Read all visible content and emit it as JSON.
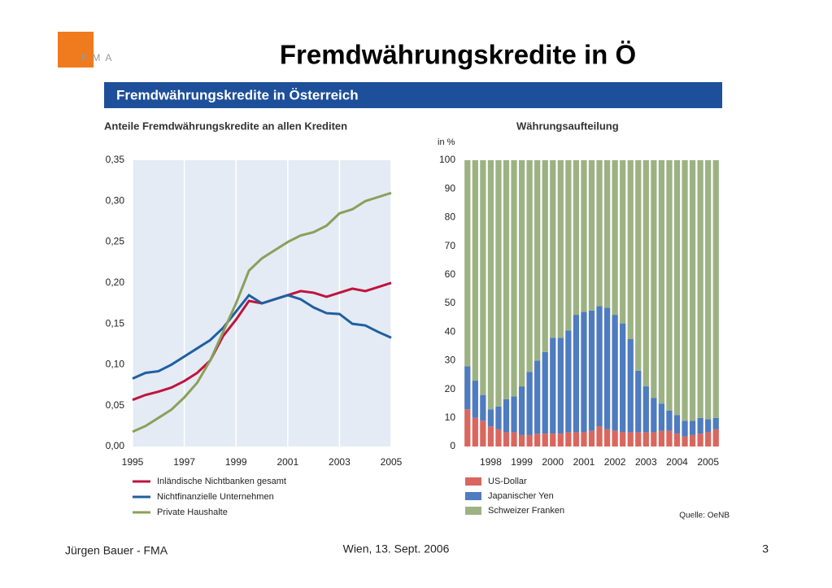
{
  "slide": {
    "title": "Fremdwährungskredite in Ö",
    "logo": "FMA",
    "banner": "Fremdwährungskredite in Österreich",
    "source": "Quelle: OeNB",
    "footer_left": "Jürgen Bauer - FMA",
    "footer_center": "Wien, 13. Sept. 2006",
    "page": "3"
  },
  "chart_data": [
    {
      "type": "line",
      "title": "Anteile Fremdwährungskredite an allen Krediten",
      "x": [
        1995,
        1995.5,
        1996,
        1996.5,
        1997,
        1997.5,
        1998,
        1998.5,
        1999,
        1999.5,
        2000,
        2000.5,
        2001,
        2001.5,
        2002,
        2002.5,
        2003,
        2003.5,
        2004,
        2004.5,
        2005
      ],
      "xlim": [
        1995,
        2005
      ],
      "xticks": [
        1995,
        1997,
        1999,
        2001,
        2003,
        2005
      ],
      "ylim": [
        0,
        0.35
      ],
      "yticks": [
        {
          "value": 0,
          "label": "0,00"
        },
        {
          "value": 0.05,
          "label": "0,05"
        },
        {
          "value": 0.1,
          "label": "0,10"
        },
        {
          "value": 0.15,
          "label": "0,15"
        },
        {
          "value": 0.2,
          "label": "0,20"
        },
        {
          "value": 0.25,
          "label": "0,25"
        },
        {
          "value": 0.3,
          "label": "0,30"
        },
        {
          "value": 0.35,
          "label": "0,35"
        }
      ],
      "grid": true,
      "series": [
        {
          "name": "Inländische Nichtbanken gesamt",
          "color": "#c0143c",
          "values": [
            0.057,
            0.063,
            0.067,
            0.072,
            0.08,
            0.09,
            0.105,
            0.135,
            0.155,
            0.178,
            0.175,
            0.18,
            0.185,
            0.19,
            0.188,
            0.183,
            0.188,
            0.193,
            0.19,
            0.195,
            0.2
          ]
        },
        {
          "name": "Nichtfinanzielle Unternehmen",
          "color": "#1f5fa0",
          "values": [
            0.083,
            0.09,
            0.092,
            0.1,
            0.11,
            0.12,
            0.13,
            0.145,
            0.165,
            0.185,
            0.175,
            0.18,
            0.185,
            0.18,
            0.17,
            0.163,
            0.162,
            0.15,
            0.148,
            0.14,
            0.133
          ]
        },
        {
          "name": "Private Haushalte",
          "color": "#8aa05a",
          "values": [
            0.018,
            0.025,
            0.035,
            0.045,
            0.06,
            0.078,
            0.105,
            0.14,
            0.175,
            0.215,
            0.23,
            0.24,
            0.25,
            0.258,
            0.262,
            0.27,
            0.285,
            0.29,
            0.3,
            0.305,
            0.31
          ]
        }
      ]
    },
    {
      "type": "stacked_bar",
      "title": "Währungsaufteilung",
      "y_label": "in %",
      "categories": [
        null,
        null,
        null,
        "1998",
        null,
        null,
        null,
        "1999",
        null,
        null,
        null,
        "2000",
        null,
        null,
        null,
        "2001",
        null,
        null,
        null,
        "2002",
        null,
        null,
        null,
        "2003",
        null,
        null,
        null,
        "2004",
        null,
        null,
        null,
        "2005",
        null
      ],
      "ylim": [
        0,
        100
      ],
      "yticks": [
        0,
        10,
        20,
        30,
        40,
        50,
        60,
        70,
        80,
        90,
        100
      ],
      "series": [
        {
          "name": "US-Dollar",
          "color": "#d9675e",
          "values": [
            13,
            10,
            9,
            7,
            6,
            5,
            5,
            4,
            4,
            4.5,
            4.5,
            4.5,
            4.5,
            5,
            5,
            5,
            5.5,
            7,
            6,
            5.5,
            5,
            5,
            5,
            5,
            5,
            5.5,
            5.5,
            4.5,
            3.5,
            4,
            4.5,
            5,
            6
          ]
        },
        {
          "name": "Japanischer Yen",
          "color": "#4f7bbf",
          "values": [
            15,
            13,
            9,
            6,
            8,
            11.5,
            12.5,
            17,
            22,
            25.5,
            28.5,
            33.5,
            33.5,
            35.5,
            41,
            42,
            42,
            42,
            42.5,
            40.5,
            38,
            32.5,
            21.5,
            16,
            12,
            9.5,
            7,
            6.5,
            5.5,
            5,
            5.5,
            4.5,
            4
          ]
        },
        {
          "name": "Schweizer Franken",
          "color": "#9db283",
          "values": [
            72,
            77,
            82,
            87,
            86,
            83.5,
            82.5,
            79,
            74,
            70,
            67,
            62,
            62,
            59.5,
            54,
            53,
            52.5,
            51,
            51.5,
            54,
            57,
            62.5,
            73.5,
            79,
            83,
            85,
            87.5,
            89,
            91,
            91,
            90,
            90.5,
            90
          ]
        }
      ]
    }
  ]
}
